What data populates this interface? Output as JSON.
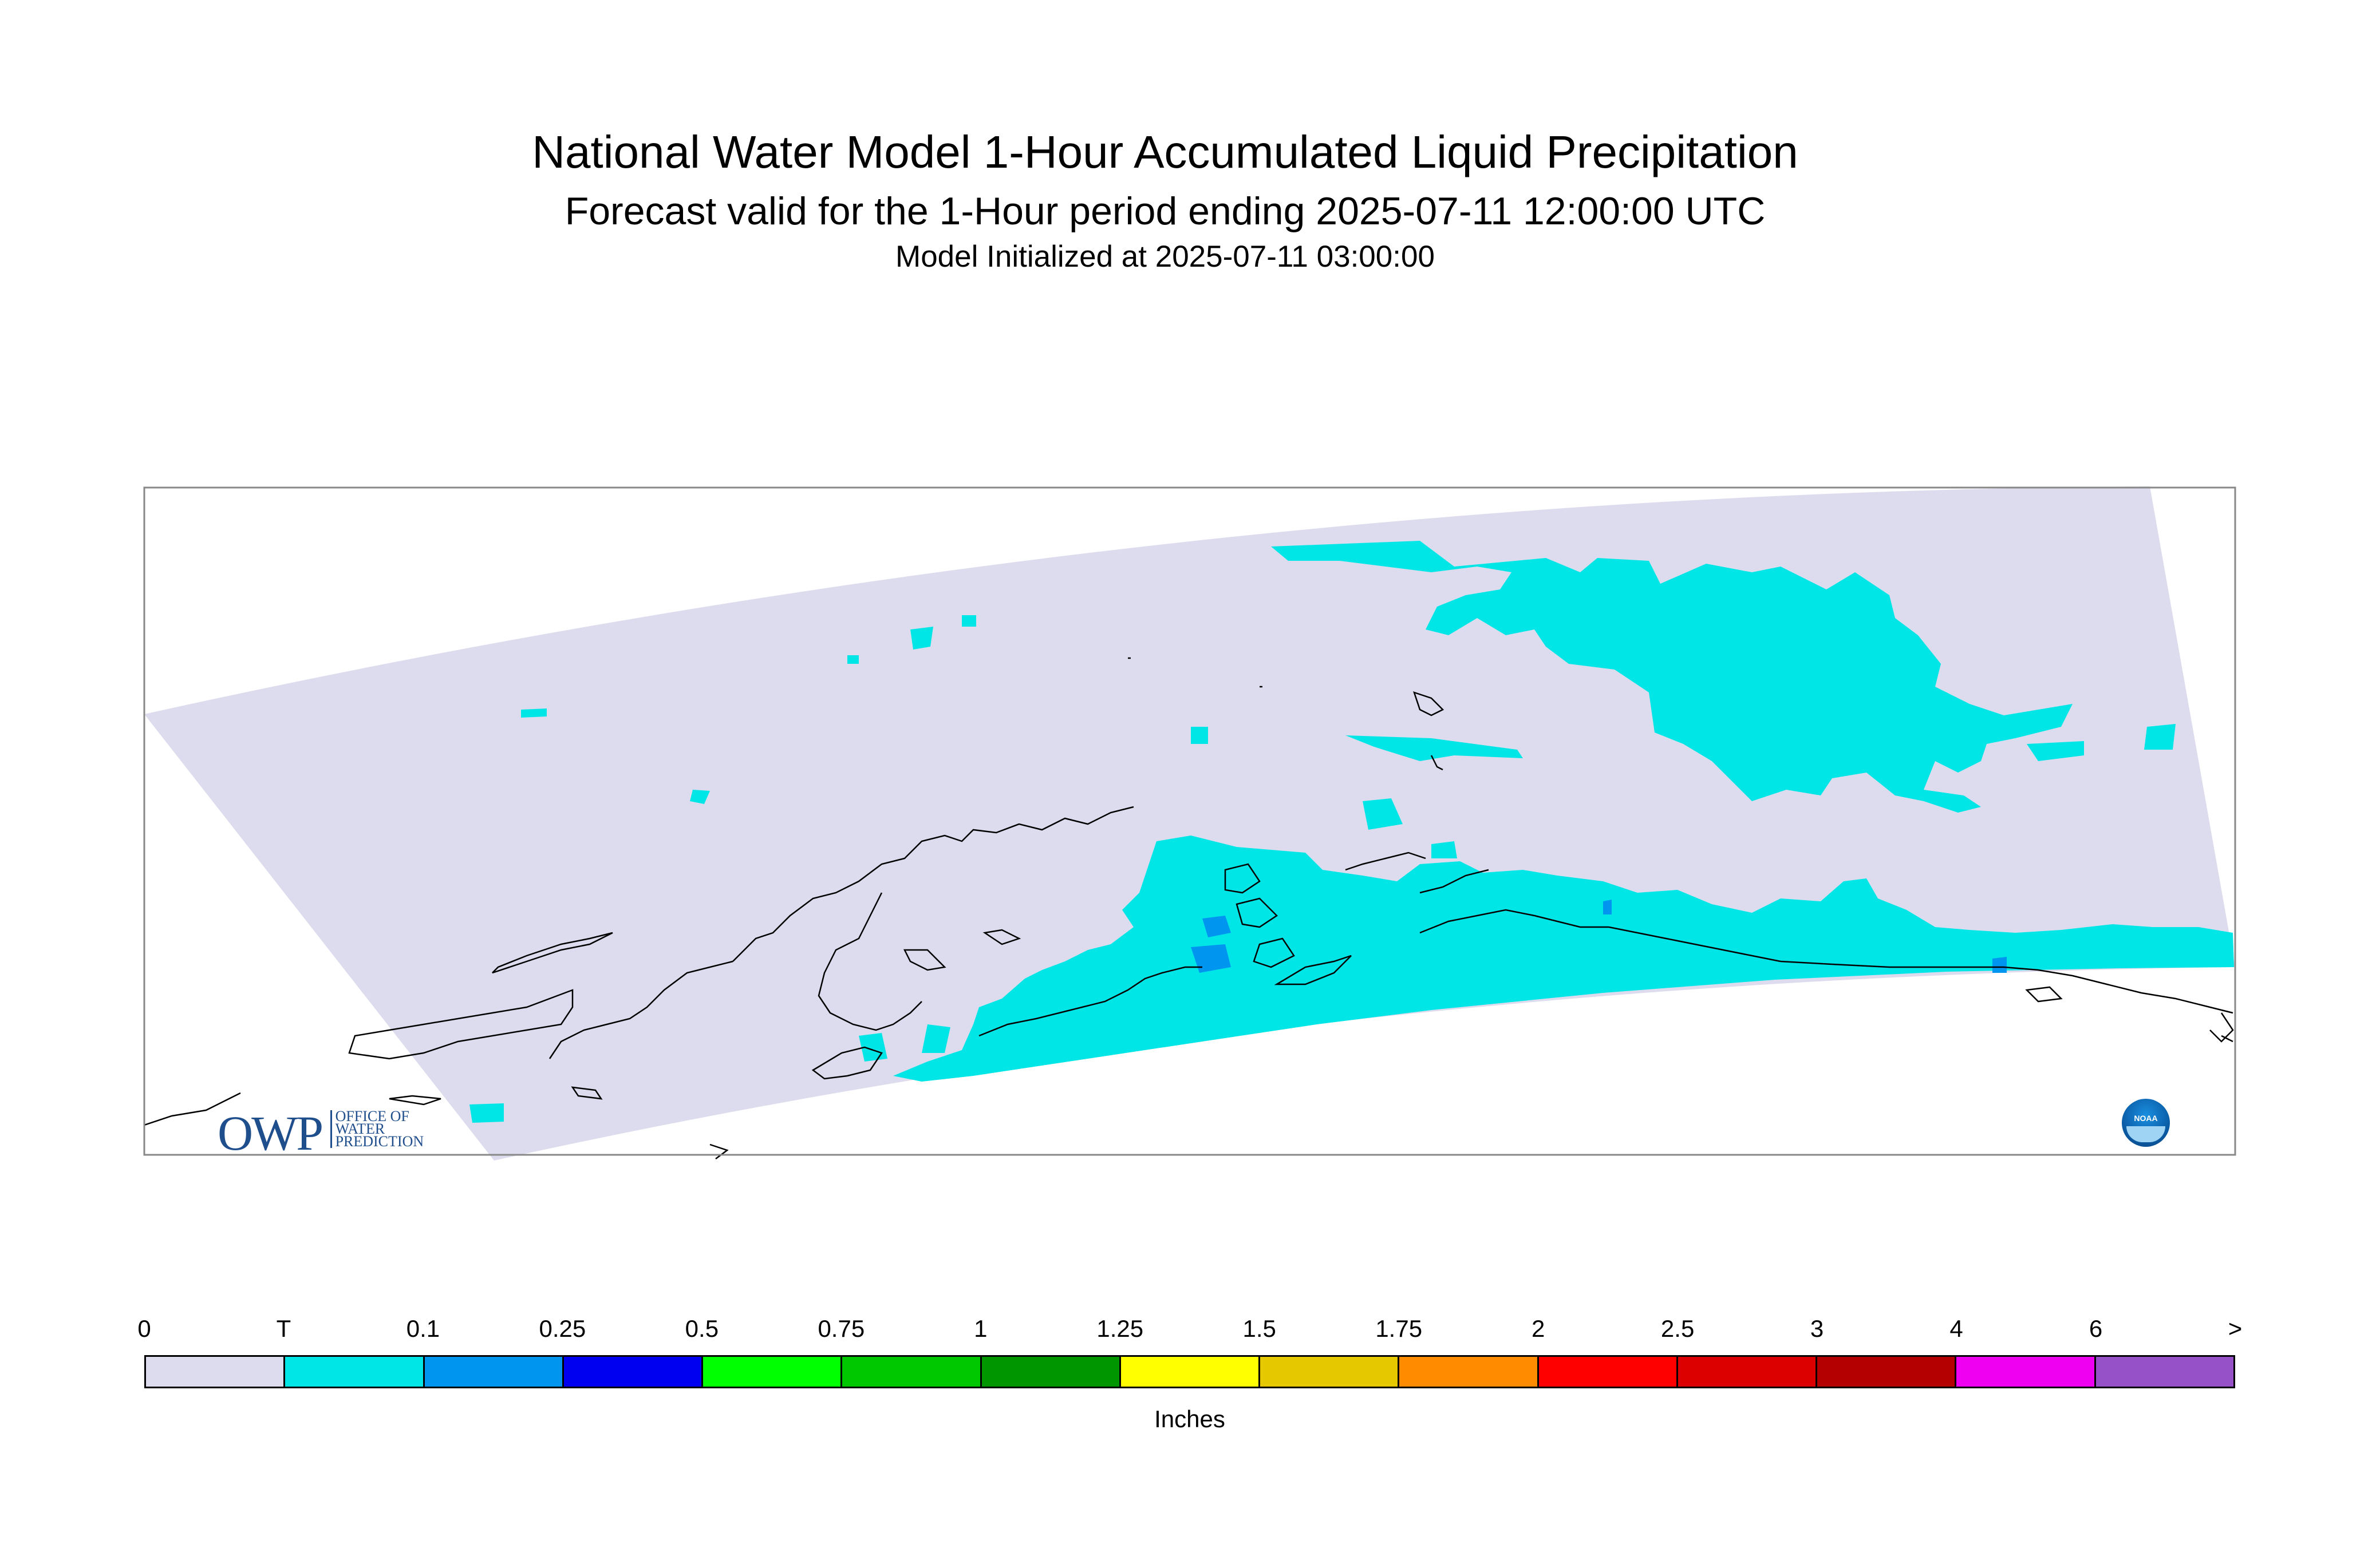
{
  "title": "National Water Model 1-Hour Accumulated Liquid Precipitation",
  "subtitle": "Forecast valid for the 1-Hour period ending 2025-07-11 12:00:00 UTC",
  "init_line": "Model Initialized at 2025-07-11 03:00:00",
  "logo_left": {
    "big": "OWP",
    "line1": "OFFICE OF",
    "line2": "WATER",
    "line3": "PREDICTION"
  },
  "logo_right": {
    "text": "NOAA"
  },
  "colors": {
    "zero": "#dcdcee",
    "trace": "#00e6e6",
    "light_blue": "#0096f0",
    "coast": "#000000"
  },
  "legend": {
    "labels": [
      "0",
      "T",
      "0.1",
      "0.25",
      "0.5",
      "0.75",
      "1",
      "1.25",
      "1.5",
      "1.75",
      "2",
      "2.5",
      "3",
      "4",
      "6",
      ">"
    ],
    "colors": [
      "#dcdcee",
      "#00e6e6",
      "#0096f0",
      "#0000f0",
      "#00ff00",
      "#00c800",
      "#009600",
      "#ffff00",
      "#e6c800",
      "#ff8c00",
      "#ff0000",
      "#dc0000",
      "#b40000",
      "#f000f0",
      "#9650c8"
    ],
    "units": "Inches"
  }
}
